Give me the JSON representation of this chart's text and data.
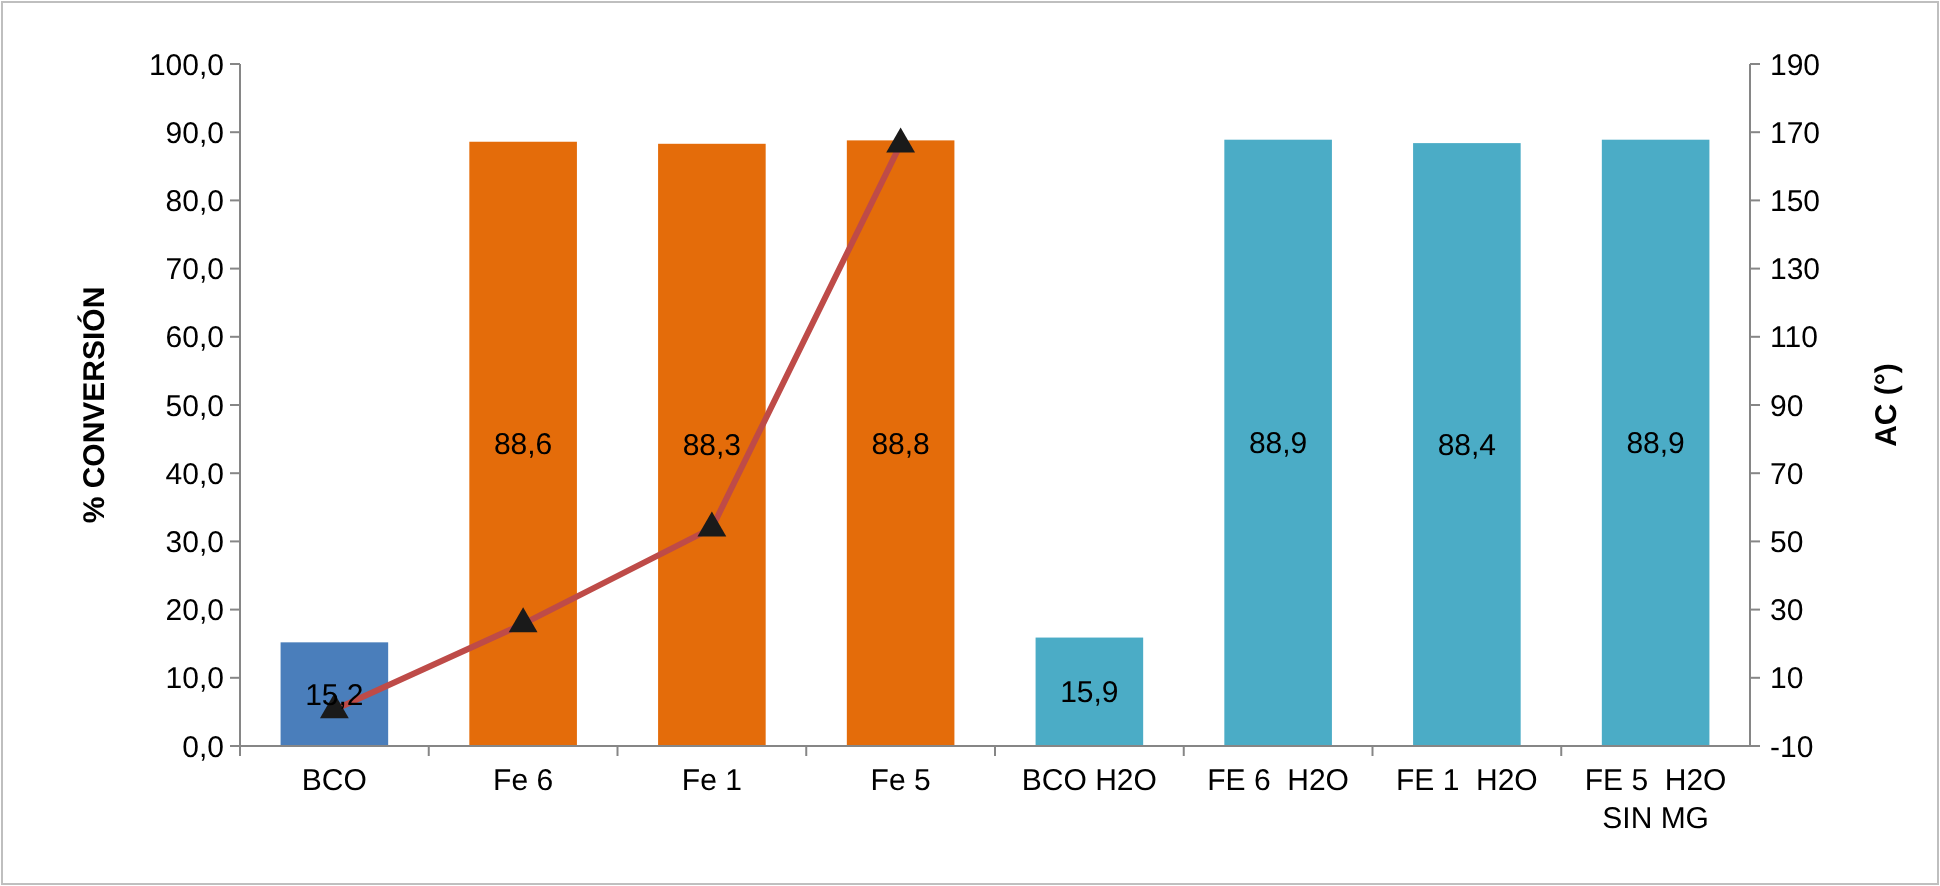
{
  "chart_data": {
    "type": "bar",
    "ylabel": "% CONVERSIÓN",
    "y2label": "AC (°)",
    "categories": [
      "BCO",
      "Fe 6",
      "Fe 1",
      "Fe 5",
      "BCO H2O",
      "FE 6  H2O",
      "FE 1  H2O",
      "FE 5  H2O SIN MG"
    ],
    "series": [
      {
        "colors": [
          "#4a7ebb",
          "#e46c0a",
          "#e46c0a",
          "#e46c0a",
          "#4bacc6",
          "#4bacc6",
          "#4bacc6",
          "#4bacc6"
        ],
        "values": [
          15.2,
          88.6,
          88.3,
          88.8,
          15.9,
          88.9,
          88.4,
          88.9
        ],
        "value_labels": [
          "15,2",
          "88,6",
          "88,3",
          "88,8",
          "15,9",
          "88,9",
          "88,4",
          "88,9"
        ]
      },
      {
        "type": "line",
        "axis": "y2",
        "color": "#be4b48",
        "marker": "triangle",
        "values": [
          0.6,
          25.8,
          53.9,
          166.5,
          null,
          null,
          null,
          null
        ]
      }
    ],
    "ylim": [
      0,
      100
    ],
    "yticks": [
      {
        "value": 0,
        "label": "0,0"
      },
      {
        "value": 10,
        "label": "10,0"
      },
      {
        "value": 20,
        "label": "20,0"
      },
      {
        "value": 30,
        "label": "30,0"
      },
      {
        "value": 40,
        "label": "40,0"
      },
      {
        "value": 50,
        "label": "50,0"
      },
      {
        "value": 60,
        "label": "60,0"
      },
      {
        "value": 70,
        "label": "70,0"
      },
      {
        "value": 80,
        "label": "80,0"
      },
      {
        "value": 90,
        "label": "90,0"
      },
      {
        "value": 100,
        "label": "100,0"
      }
    ],
    "y2lim": [
      -10,
      190
    ],
    "y2ticks": [
      -10,
      10,
      30,
      50,
      70,
      90,
      110,
      130,
      150,
      170,
      190
    ],
    "grid": false
  }
}
